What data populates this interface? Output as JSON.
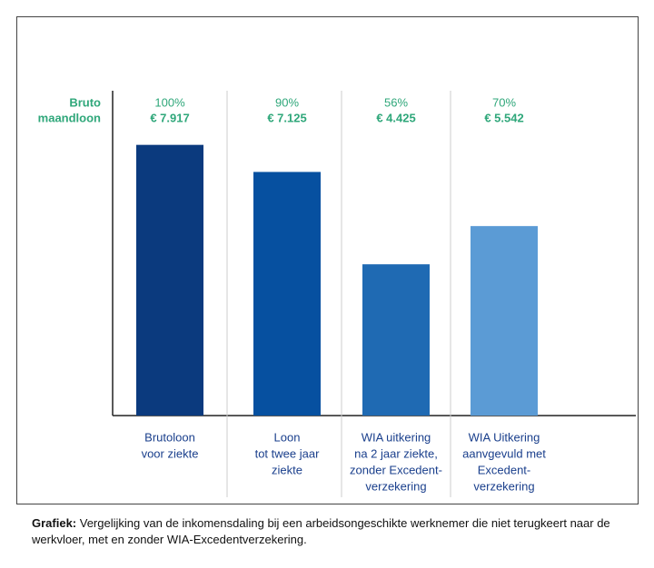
{
  "chart_data": {
    "type": "bar",
    "y_label": [
      "Bruto",
      "maandloon"
    ],
    "categories": [
      [
        "Brutoloon",
        "voor ziekte"
      ],
      [
        "Loon",
        "tot twee jaar",
        "ziekte"
      ],
      [
        "WIA uitkering",
        "na 2 jaar ziekte,",
        "zonder Excedent-",
        "verzekering"
      ],
      [
        "WIA Uitkering",
        "aanvgevuld met",
        "Excedent-",
        "verzekering"
      ]
    ],
    "values": [
      7917,
      7125,
      4425,
      5542
    ],
    "value_labels": [
      "€ 7.917",
      "€ 7.125",
      "€ 4.425",
      "€ 5.542"
    ],
    "shares": {
      "values": [
        100,
        90,
        56,
        70
      ],
      "value_labels": [
        "100%",
        "90%",
        "56%",
        "70%"
      ]
    },
    "colors": [
      "#0b3a7e",
      "#0650a0",
      "#1f6ab3",
      "#5b9bd5"
    ],
    "ylim": [
      0,
      9500
    ]
  },
  "caption": {
    "label": "Grafiek:",
    "text": " Vergelijking van de inkomensdaling bij een arbeidsongeschikte werknemer die niet terugkeert naar de werkvloer, met en zonder WIA-Excedentverzekering."
  }
}
